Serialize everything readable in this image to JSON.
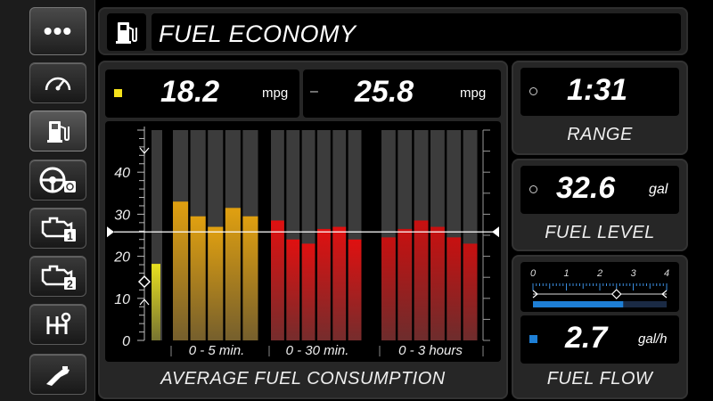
{
  "sidebar": {
    "menu_label": "•••",
    "items": [
      {
        "name": "speedometer-icon"
      },
      {
        "name": "fuel-pump-icon"
      },
      {
        "name": "steering-wheel-icon"
      },
      {
        "name": "engine-1-icon"
      },
      {
        "name": "engine-2-icon"
      },
      {
        "name": "gear-shift-icon"
      },
      {
        "name": "fuel-nozzle-icon"
      }
    ],
    "active_index": 1
  },
  "header": {
    "title": "FUEL ECONOMY",
    "icon": "fuel-pump-icon"
  },
  "economy": {
    "current_value": "18.2",
    "current_unit": "mpg",
    "separator": "–",
    "average_value": "25.8",
    "average_unit": "mpg",
    "indicator_color": "#f5e21b",
    "caption": "AVERAGE FUEL CONSUMPTION"
  },
  "range": {
    "value": "1:31",
    "label": "RANGE"
  },
  "fuel_level": {
    "value": "32.6",
    "unit": "gal",
    "label": "FUEL LEVEL"
  },
  "fuel_flow": {
    "value": "2.7",
    "unit": "gal/h",
    "label": "FUEL FLOW",
    "indicator_color": "#1e7fd6",
    "scale_ticks": [
      "0",
      "1",
      "2",
      "3",
      "4"
    ],
    "scale_min": 0,
    "scale_max": 4,
    "gauge_value": 2.7,
    "marker_value": 2.5
  },
  "chart_data": {
    "type": "bar",
    "ylim": [
      0,
      50
    ],
    "y_ticks": [
      "0",
      "10",
      "20",
      "30",
      "40"
    ],
    "reference_line": 25.8,
    "current": 18.2,
    "groups": [
      {
        "label": "0 - 5 min.",
        "values": [
          33,
          29.5,
          27,
          31.5,
          29.5
        ]
      },
      {
        "label": "0 - 30 min.",
        "values": [
          28.5,
          24,
          23,
          26.5,
          27,
          24
        ]
      },
      {
        "label": "0 - 3 hours",
        "values": [
          24.5,
          26.5,
          28.5,
          27,
          24.5,
          23
        ]
      }
    ],
    "colors": {
      "short": "#e0a010",
      "medium": "#e01010",
      "long": "#c81010",
      "current": "#e8e020"
    }
  }
}
